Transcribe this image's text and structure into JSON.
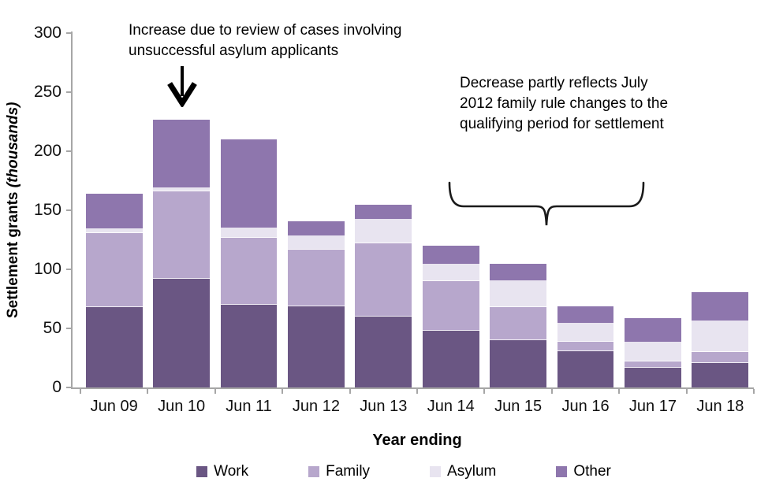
{
  "chart_data": {
    "type": "bar",
    "stacked": true,
    "xlabel": "Year ending",
    "ylabel_text": "Settlement grants",
    "ylabel_unit": "(thousands)",
    "ylim": [
      0,
      300
    ],
    "yticks": [
      0,
      50,
      100,
      150,
      200,
      250,
      300
    ],
    "grid": false,
    "legend_position": "bottom",
    "categories": [
      "Jun 09",
      "Jun 10",
      "Jun 11",
      "Jun 12",
      "Jun 13",
      "Jun 14",
      "Jun 15",
      "Jun 16",
      "Jun 17",
      "Jun 18"
    ],
    "series": [
      {
        "name": "Work",
        "color": "#6a5683",
        "values": [
          68,
          92,
          70,
          69,
          60,
          48,
          40,
          31,
          17,
          21
        ]
      },
      {
        "name": "Family",
        "color": "#b7a7cc",
        "values": [
          63,
          74,
          57,
          48,
          62,
          42,
          28,
          8,
          5,
          9
        ]
      },
      {
        "name": "Asylum",
        "color": "#e8e4f0",
        "values": [
          3,
          3,
          8,
          11,
          20,
          14,
          22,
          15,
          16,
          26
        ]
      },
      {
        "name": "Other",
        "color": "#8e76ad",
        "values": [
          30,
          58,
          75,
          13,
          13,
          16,
          15,
          15,
          21,
          25
        ]
      }
    ],
    "totals": [
      164,
      227,
      210,
      141,
      155,
      120,
      105,
      69,
      59,
      81
    ],
    "annotations": [
      {
        "text": "Increase due to review of cases involving unsuccessful asylum applicants",
        "target": "Jun 10"
      },
      {
        "text": "Decrease partly reflects July 2012 family rule changes to the qualifying period for settlement",
        "target": "Jun 14 to Jun 18"
      }
    ]
  },
  "style": {
    "axis_color": "#a6a6a6",
    "annotation_color": "#000000"
  }
}
